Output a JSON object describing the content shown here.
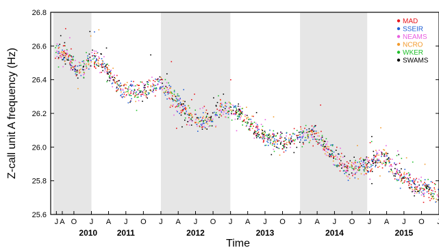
{
  "chart_data": {
    "type": "scatter",
    "title": "",
    "xlabel": "Time",
    "ylabel": "Z-call unit A frequency (Hz)",
    "ylim": [
      25.6,
      26.8
    ],
    "xlim": [
      "2010-06-01",
      "2016-01-01"
    ],
    "y_ticks": [
      "25.6",
      "25.8",
      "26.0",
      "26.2",
      "26.4",
      "26.6",
      "26.8"
    ],
    "month_ticks": [
      {
        "date": "2010-07-01",
        "label": "J"
      },
      {
        "date": "2010-08-01",
        "label": "A"
      },
      {
        "date": "2010-10-01",
        "label": "O"
      },
      {
        "date": "2011-01-01",
        "label": "J"
      },
      {
        "date": "2011-04-01",
        "label": "A"
      },
      {
        "date": "2011-07-01",
        "label": "J"
      },
      {
        "date": "2011-10-01",
        "label": "O"
      },
      {
        "date": "2012-01-01",
        "label": "J"
      },
      {
        "date": "2012-04-01",
        "label": "A"
      },
      {
        "date": "2012-07-01",
        "label": "J"
      },
      {
        "date": "2012-10-01",
        "label": "O"
      },
      {
        "date": "2013-01-01",
        "label": "J"
      },
      {
        "date": "2013-04-01",
        "label": "A"
      },
      {
        "date": "2013-07-01",
        "label": "J"
      },
      {
        "date": "2013-10-01",
        "label": "O"
      },
      {
        "date": "2014-01-01",
        "label": "J"
      },
      {
        "date": "2014-04-01",
        "label": "A"
      },
      {
        "date": "2014-07-01",
        "label": "J"
      },
      {
        "date": "2014-10-01",
        "label": "O"
      },
      {
        "date": "2015-01-01",
        "label": "J"
      },
      {
        "date": "2015-04-01",
        "label": "A"
      },
      {
        "date": "2015-07-01",
        "label": "J"
      },
      {
        "date": "2015-10-01",
        "label": "O"
      },
      {
        "date": "2016-01-01",
        "label": "J"
      }
    ],
    "year_labels": [
      {
        "label": "2010",
        "center": "2010-12-15"
      },
      {
        "label": "2011",
        "center": "2011-07-01"
      },
      {
        "label": "2012",
        "center": "2012-07-01"
      },
      {
        "label": "2013",
        "center": "2013-07-01"
      },
      {
        "label": "2014",
        "center": "2014-07-01"
      },
      {
        "label": "2015",
        "center": "2015-07-01"
      }
    ],
    "shaded_periods": [
      {
        "start": "2010-06-15",
        "end": "2011-01-01"
      },
      {
        "start": "2012-01-01",
        "end": "2012-12-31"
      },
      {
        "start": "2014-01-01",
        "end": "2014-12-20"
      }
    ],
    "legend_position": "top-right",
    "series": [
      {
        "name": "MAD",
        "color": "#e8141b"
      },
      {
        "name": "SSEIR",
        "color": "#1f5fd6"
      },
      {
        "name": "NEAMS",
        "color": "#e85fe0"
      },
      {
        "name": "NCRO",
        "color": "#f29b2e"
      },
      {
        "name": "WKER",
        "color": "#1fbf2a"
      },
      {
        "name": "SWAMS",
        "color": "#000000"
      }
    ],
    "trend": [
      {
        "date": "2010-06-20",
        "y": 26.59
      },
      {
        "date": "2010-09-01",
        "y": 26.52
      },
      {
        "date": "2010-10-15",
        "y": 26.45
      },
      {
        "date": "2011-01-10",
        "y": 26.53
      },
      {
        "date": "2011-03-15",
        "y": 26.47
      },
      {
        "date": "2011-06-01",
        "y": 26.34
      },
      {
        "date": "2011-09-01",
        "y": 26.33
      },
      {
        "date": "2011-12-20",
        "y": 26.38
      },
      {
        "date": "2012-03-01",
        "y": 26.3
      },
      {
        "date": "2012-06-01",
        "y": 26.18
      },
      {
        "date": "2012-09-01",
        "y": 26.15
      },
      {
        "date": "2012-10-15",
        "y": 26.22
      },
      {
        "date": "2013-01-15",
        "y": 26.24
      },
      {
        "date": "2013-04-01",
        "y": 26.15
      },
      {
        "date": "2013-07-01",
        "y": 26.06
      },
      {
        "date": "2013-10-01",
        "y": 26.03
      },
      {
        "date": "2014-01-15",
        "y": 26.07
      },
      {
        "date": "2014-03-15",
        "y": 26.09
      },
      {
        "date": "2014-06-01",
        "y": 25.98
      },
      {
        "date": "2014-09-01",
        "y": 25.87
      },
      {
        "date": "2014-12-20",
        "y": 25.9
      },
      {
        "date": "2015-03-15",
        "y": 25.95
      },
      {
        "date": "2015-06-01",
        "y": 25.85
      },
      {
        "date": "2015-09-01",
        "y": 25.77
      },
      {
        "date": "2015-11-15",
        "y": 25.75
      },
      {
        "date": "2015-12-31",
        "y": 25.72
      }
    ],
    "scatter_spread": 0.04
  }
}
